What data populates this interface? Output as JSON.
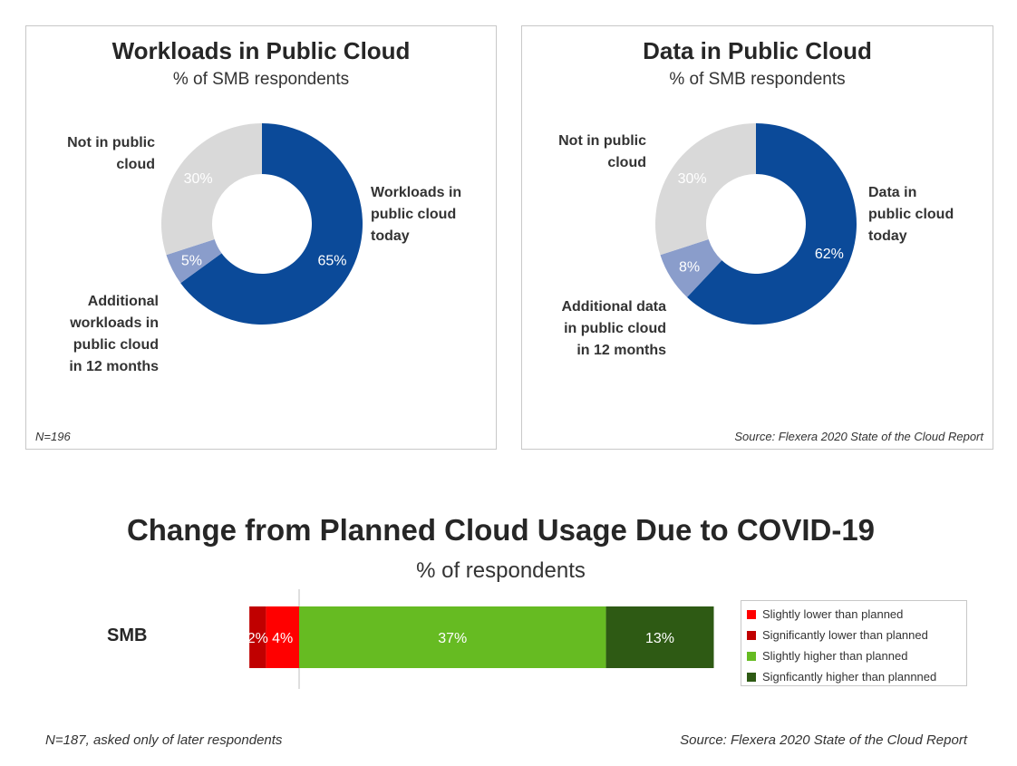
{
  "chart_data": [
    {
      "type": "pie",
      "title": "Workloads in Public Cloud",
      "subtitle": "% of SMB respondents",
      "slices": [
        {
          "label": "Workloads in public cloud today",
          "value": 65,
          "display": "65%",
          "color": "#0b4a99"
        },
        {
          "label": "Additional workloads in public cloud in 12 months",
          "value": 5,
          "display": "5%",
          "color": "#8a9dcb"
        },
        {
          "label": "Not in public cloud",
          "value": 30,
          "display": "30%",
          "color": "#d9d9d9"
        }
      ],
      "callouts": {
        "today": [
          "Workloads in",
          "public cloud",
          "today"
        ],
        "additional": [
          "Additional",
          "workloads in",
          "public cloud",
          "in 12 months"
        ],
        "not": [
          "Not in public",
          "cloud"
        ]
      },
      "note": "N=196"
    },
    {
      "type": "pie",
      "title": "Data in Public Cloud",
      "subtitle": "% of SMB respondents",
      "slices": [
        {
          "label": "Data in public cloud today",
          "value": 62,
          "display": "62%",
          "color": "#0b4a99"
        },
        {
          "label": "Additional data in public cloud in 12 months",
          "value": 8,
          "display": "8%",
          "color": "#8a9dcb"
        },
        {
          "label": "Not in public cloud",
          "value": 30,
          "display": "30%",
          "color": "#d9d9d9"
        }
      ],
      "callouts": {
        "today": [
          "Data in",
          "public cloud",
          "today"
        ],
        "additional": [
          "Additional data",
          "in public cloud",
          "in 12 months"
        ],
        "not": [
          "Not in public",
          "cloud"
        ]
      },
      "note": "Source: Flexera 2020 State of the Cloud Report"
    },
    {
      "type": "bar",
      "orientation": "horizontal-stacked",
      "title": "Change from Planned Cloud Usage Due to COVID-19",
      "subtitle": "% of respondents",
      "categories": [
        "SMB"
      ],
      "lower_series": [
        {
          "name": "Significantly lower than planned",
          "values": [
            2
          ],
          "display": "2%",
          "color": "#c00000"
        },
        {
          "name": "Slightly lower than planned",
          "values": [
            4
          ],
          "display": "4%",
          "color": "#ff0000"
        }
      ],
      "higher_series": [
        {
          "name": "Slightly higher than planned",
          "values": [
            37
          ],
          "display": "37%",
          "color": "#66bb22"
        },
        {
          "name": "Signficantly higher than plannned",
          "values": [
            13
          ],
          "display": "13%",
          "color": "#2e5a14"
        }
      ],
      "legend": [
        {
          "name": "Slightly lower than planned",
          "color": "#ff0000"
        },
        {
          "name": "Significantly lower than planned",
          "color": "#c00000"
        },
        {
          "name": "Slightly higher than planned",
          "color": "#66bb22"
        },
        {
          "name": "Signficantly higher than plannned",
          "color": "#2e5a14"
        }
      ],
      "legend_position": "right",
      "note_left": "N=187, asked only of later respondents",
      "note_right": "Source: Flexera 2020 State of the Cloud Report"
    }
  ]
}
